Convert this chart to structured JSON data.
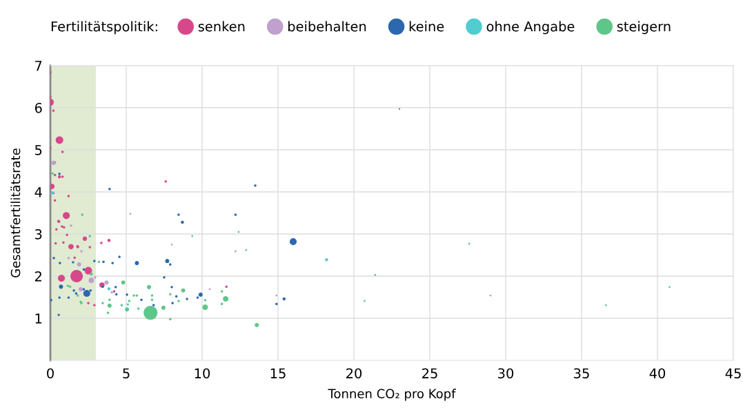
{
  "chart_data": {
    "type": "bubble",
    "xlabel": "Tonnen CO₂ pro Kopf",
    "ylabel": "Gesamtfertilitätsrate",
    "legend_title": "Fertilitätspolitik:",
    "legend": "top",
    "xlim": [
      0,
      45
    ],
    "xticks": [
      0,
      5,
      10,
      15,
      20,
      25,
      30,
      35,
      40,
      45
    ],
    "ylim": [
      0,
      7
    ],
    "yticks": [
      1,
      2,
      3,
      4,
      5,
      6,
      7
    ],
    "grid": true,
    "marker": "circle",
    "bands": [
      {
        "axis": "x",
        "from": 0,
        "to": 3,
        "color": "#e0ebd2"
      }
    ],
    "series": [
      {
        "name": "senken",
        "color": "#d6488a",
        "x": [
          0,
          0,
          0,
          0.2,
          0.6,
          0,
          0.8,
          0.3,
          0.1,
          0.3,
          0.6,
          0.8,
          0.2,
          0.3,
          1.05,
          0.55,
          1.2,
          0.77,
          0.9,
          0.4,
          2.27,
          1.36,
          1.8,
          0.86,
          0.35,
          1.6,
          2.5,
          1.73,
          0.73,
          3.4,
          3.86,
          3.36,
          2.6,
          4.2,
          2.5,
          2.9,
          1.1,
          7.6,
          11.6
        ],
        "values": [
          6.84,
          6.25,
          6.13,
          5.93,
          5.23,
          5.05,
          4.95,
          4.7,
          4.13,
          4.4,
          4.36,
          4.36,
          3.97,
          3.8,
          3.44,
          3.3,
          3.9,
          3.18,
          3.16,
          3.11,
          2.89,
          2.7,
          2.7,
          2.8,
          2.78,
          2.44,
          2.13,
          2.0,
          1.95,
          1.79,
          2.85,
          2.79,
          2.69,
          1.64,
          1.36,
          1.31,
          2.98,
          4.25,
          1.75
        ],
        "sizes": [
          0.03,
          0.03,
          0.25,
          0.03,
          0.3,
          0.03,
          0.03,
          0.03,
          0.15,
          0.03,
          0.05,
          0.03,
          0.03,
          0.03,
          0.25,
          0.05,
          0.03,
          0.03,
          0.03,
          0.03,
          0.1,
          0.15,
          0.05,
          0.03,
          0.03,
          0.03,
          0.3,
          0.8,
          0.25,
          0.15,
          0.05,
          0.03,
          0.03,
          0.03,
          0.03,
          0.03,
          0.03,
          0.03,
          0.03
        ]
      },
      {
        "name": "beibehalten",
        "color": "#c0a0cc",
        "x": [
          0.2,
          1.36,
          1.9,
          2.05,
          1.2,
          2.7,
          2.95,
          2.0,
          3.7,
          4.05,
          5.27,
          8.0,
          10.5,
          12.2,
          14.9,
          29.0
        ],
        "values": [
          4.69,
          3.2,
          2.28,
          2.59,
          2.43,
          1.9,
          1.97,
          1.69,
          1.85,
          1.62,
          3.48,
          2.75,
          1.69,
          2.59,
          1.54,
          1.54
        ],
        "sizes": [
          0.1,
          0.03,
          0.09,
          0.03,
          0.03,
          0.16,
          0.03,
          0.09,
          0.09,
          0.03,
          0.02,
          0.02,
          0.02,
          0.02,
          0.02,
          0.02
        ]
      },
      {
        "name": "keine",
        "color": "#2b68b0",
        "x": [
          0.6,
          3.9,
          0.63,
          0.23,
          1.5,
          2.2,
          2.9,
          3.5,
          4.1,
          4.55,
          5.7,
          7.7,
          7.9,
          7.5,
          0.7,
          2.4,
          2.2,
          1.55,
          1.7,
          2.65,
          0.6,
          1.2,
          0.05,
          0.55,
          3.45,
          4.3,
          4.35,
          6.0,
          6.8,
          5.05,
          8.0,
          8.05,
          13.5,
          8.45,
          12.2,
          8.7,
          16.0,
          8.3,
          9.0,
          9.7,
          9.9,
          15.4,
          14.9,
          23.0
        ],
        "values": [
          4.43,
          4.07,
          2.31,
          2.43,
          2.33,
          2.16,
          2.36,
          2.34,
          2.31,
          2.46,
          2.31,
          2.36,
          2.28,
          1.97,
          1.75,
          1.59,
          1.69,
          1.66,
          1.59,
          1.66,
          1.49,
          1.49,
          1.43,
          1.08,
          1.75,
          1.74,
          1.57,
          1.44,
          1.31,
          1.56,
          1.74,
          1.36,
          4.15,
          3.46,
          3.46,
          3.28,
          2.82,
          1.52,
          1.46,
          1.49,
          1.56,
          1.46,
          1.34,
          5.97
        ],
        "sizes": [
          0.03,
          0.03,
          0.03,
          0.03,
          0.03,
          0.03,
          0.03,
          0.03,
          0.03,
          0.03,
          0.09,
          0.09,
          0.03,
          0.03,
          0.09,
          0.25,
          0.03,
          0.03,
          0.03,
          0.03,
          0.03,
          0.03,
          0.03,
          0.03,
          0.03,
          0.03,
          0.03,
          0.03,
          0.03,
          0.03,
          0.03,
          0.03,
          0.03,
          0.03,
          0.03,
          0.05,
          0.25,
          0.03,
          0.03,
          0.03,
          0.09,
          0.05,
          0.03,
          0.01
        ]
      },
      {
        "name": "ohne Angabe",
        "color": "#4fcdd0",
        "x": [
          0.14,
          3.86,
          5.1,
          18.2
        ],
        "values": [
          3.98,
          1.7,
          1.33,
          2.39
        ],
        "sizes": [
          0.05,
          0.05,
          0.03,
          0.05
        ]
      },
      {
        "name": "steigern",
        "color": "#5fc68a",
        "x": [
          6.6,
          2.1,
          2.6,
          2.7,
          1.15,
          1.3,
          1.8,
          2.0,
          2.05,
          3.2,
          4.8,
          6.5,
          6.7,
          5.7,
          5.5,
          5.2,
          3.9,
          3.9,
          3.45,
          4.7,
          5.05,
          5.8,
          6.7,
          7.45,
          7.9,
          7.9,
          8.45,
          3.8,
          9.35,
          12.4,
          12.9,
          8.75,
          10.2,
          11.55,
          10.2,
          11.3,
          11.3,
          13.6,
          20.7,
          21.4,
          27.6,
          36.6,
          40.8,
          0.14
        ],
        "values": [
          1.13,
          3.46,
          2.95,
          2.05,
          1.77,
          1.75,
          1.54,
          1.39,
          1.36,
          2.34,
          1.85,
          1.74,
          1.54,
          1.54,
          1.54,
          1.41,
          1.44,
          1.3,
          1.36,
          1.31,
          1.21,
          1.23,
          1.44,
          1.25,
          1.57,
          0.98,
          1.41,
          1.13,
          2.95,
          3.05,
          2.62,
          1.66,
          1.43,
          1.46,
          1.26,
          1.64,
          1.34,
          0.84,
          1.41,
          2.03,
          2.77,
          1.31,
          1.74,
          4.44
        ],
        "sizes": [
          1,
          0.03,
          0.03,
          0.05,
          0.03,
          0.03,
          0.03,
          0.03,
          0.03,
          0.03,
          0.09,
          0.09,
          0.03,
          0.03,
          0.03,
          0.03,
          0.03,
          0.09,
          0.03,
          0.03,
          0.09,
          0.03,
          0.03,
          0.09,
          0.03,
          0.03,
          0.03,
          0.03,
          0.02,
          0.02,
          0.02,
          0.09,
          0.03,
          0.16,
          0.16,
          0.03,
          0.03,
          0.09,
          0.02,
          0.02,
          0.02,
          0.02,
          0.02,
          0.03
        ]
      }
    ]
  }
}
